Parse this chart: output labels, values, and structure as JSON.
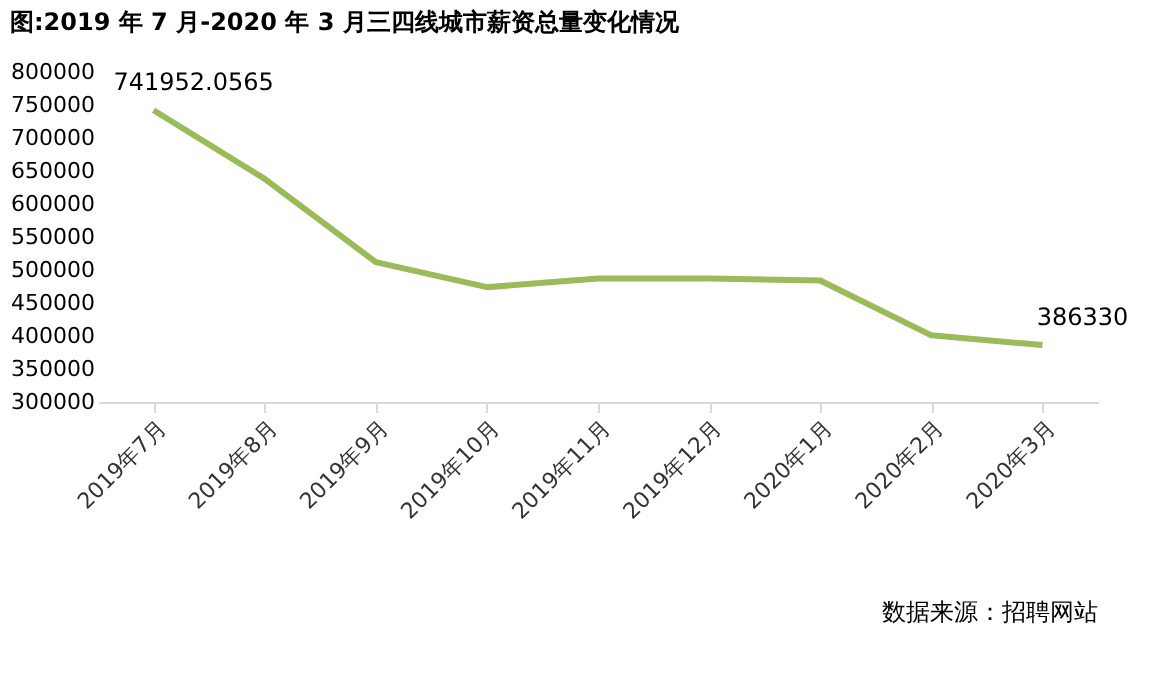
{
  "chart_data": {
    "type": "line",
    "title": "图:2019 年 7 月-2020 年 3 月三四线城市薪资总量变化情况",
    "categories": [
      "2019年7月",
      "2019年8月",
      "2019年9月",
      "2019年10月",
      "2019年11月",
      "2019年12月",
      "2020年1月",
      "2020年2月",
      "2020年3月"
    ],
    "series": [
      {
        "color": "#9bbb59",
        "values": [
          741952.0565,
          638000,
          512000,
          474000,
          487000,
          487000,
          484000,
          401000,
          386330
        ],
        "value_labels": [
          "741952.0565",
          null,
          null,
          null,
          null,
          null,
          null,
          null,
          "386330"
        ]
      }
    ],
    "ylim": [
      300000,
      800000
    ],
    "yticks": [
      300000,
      350000,
      400000,
      450000,
      500000,
      550000,
      600000,
      650000,
      700000,
      750000,
      800000
    ],
    "grid": false,
    "marker": "none",
    "line_style": "solid",
    "annotations": [
      "数据来源：招聘网站"
    ]
  }
}
